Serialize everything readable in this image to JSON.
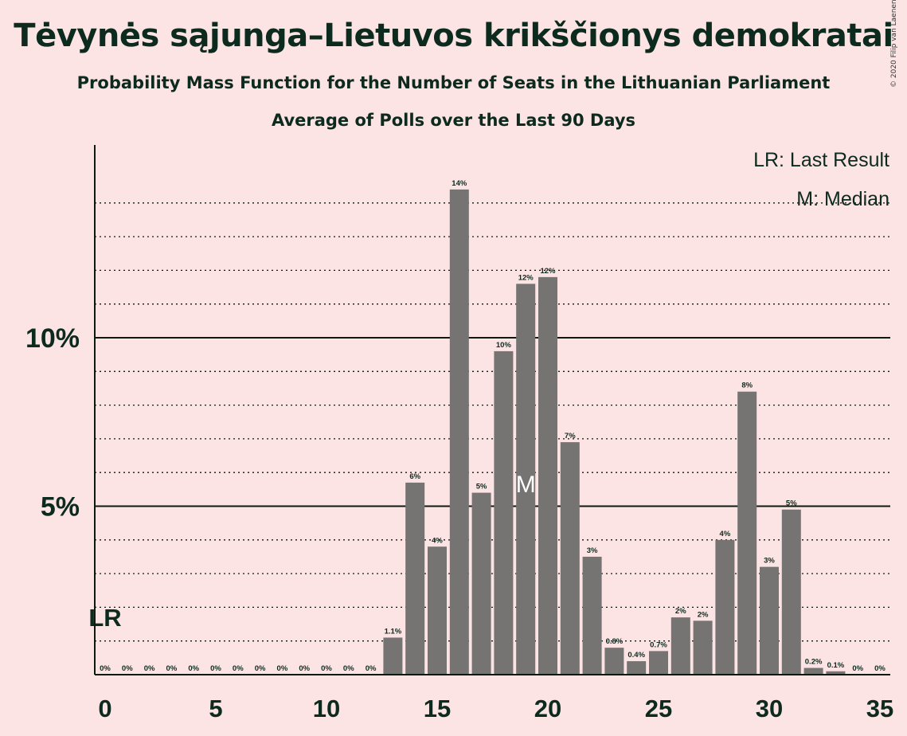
{
  "title": "Tėvynės sąjunga–Lietuvos krikščionys demokratai",
  "subtitle": "Probability Mass Function for the Number of Seats in the Lithuanian Parliament",
  "subtitle2": "Average of Polls over the Last 90 Days",
  "copyright": "© 2020 Filip van Laenen",
  "legend": {
    "lr": "LR: Last Result",
    "median": "M: Median"
  },
  "markers": {
    "lr_label": "LR",
    "lr_seat": 0,
    "median_label": "M",
    "median_seat": 19
  },
  "colors": {
    "background": "#fde4e4",
    "bar": "#767373",
    "text": "#0d2a1e"
  },
  "chart_data": {
    "type": "bar",
    "xlabel": "",
    "ylabel": "",
    "x": [
      0,
      1,
      2,
      3,
      4,
      5,
      6,
      7,
      8,
      9,
      10,
      11,
      12,
      13,
      14,
      15,
      16,
      17,
      18,
      19,
      20,
      21,
      22,
      23,
      24,
      25,
      26,
      27,
      28,
      29,
      30,
      31,
      32,
      33,
      34,
      35
    ],
    "values": [
      0,
      0,
      0,
      0,
      0,
      0,
      0,
      0,
      0,
      0,
      0,
      0,
      0,
      1.1,
      5.7,
      3.8,
      14.4,
      5.4,
      9.6,
      11.6,
      11.8,
      6.9,
      3.5,
      0.8,
      0.4,
      0.7,
      1.7,
      1.6,
      4.0,
      8.4,
      3.2,
      4.9,
      0.2,
      0.1,
      0,
      0
    ],
    "labels": [
      "0%",
      "0%",
      "0%",
      "0%",
      "0%",
      "0%",
      "0%",
      "0%",
      "0%",
      "0%",
      "0%",
      "0%",
      "0%",
      "1.1%",
      "6%",
      "4%",
      "14%",
      "5%",
      "10%",
      "12%",
      "12%",
      "7%",
      "3%",
      "0.8%",
      "0.4%",
      "0.7%",
      "2%",
      "2%",
      "4%",
      "8%",
      "3%",
      "5%",
      "0.2%",
      "0.1%",
      "0%",
      "0%"
    ],
    "xticks": [
      0,
      5,
      10,
      15,
      20,
      25,
      30,
      35
    ],
    "xtick_labels": [
      "0",
      "5",
      "10",
      "15",
      "20",
      "25",
      "30",
      "35"
    ],
    "yticks": [
      5,
      10
    ],
    "ytick_labels": [
      "5%",
      "10%"
    ],
    "ylim": [
      0,
      15.7
    ],
    "grid": "dotted every 1%, solid at 5% and 10%",
    "legend_position": "top-right"
  }
}
